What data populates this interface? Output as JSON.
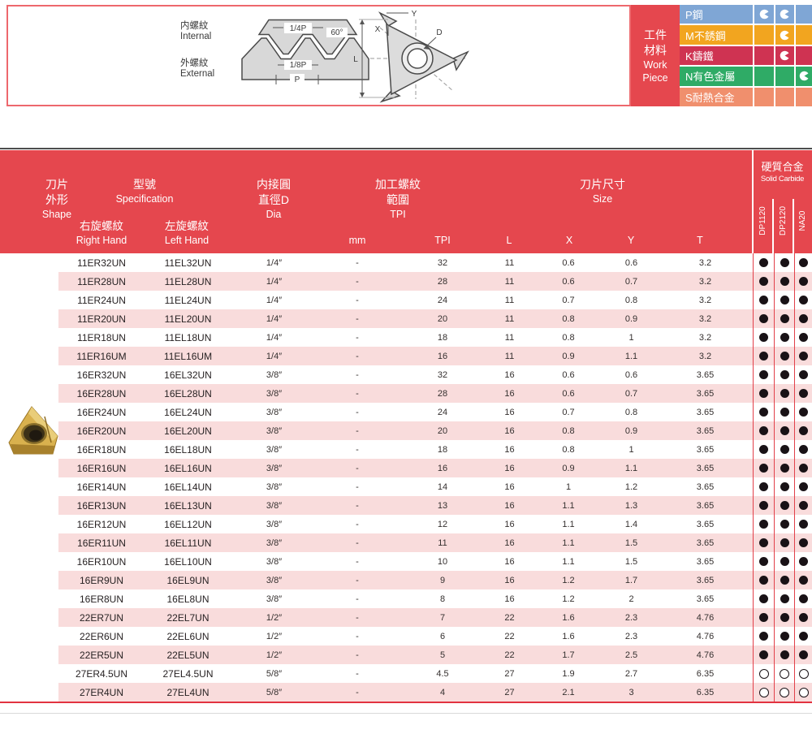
{
  "diagram": {
    "internal_zh": "内螺紋",
    "internal_en": "Internal",
    "external_zh": "外螺紋",
    "external_en": "External",
    "dims": {
      "quarter_p": "1/4P",
      "angle": "60°",
      "eighth_p": "1/8P",
      "p": "P",
      "l": "L",
      "x": "X",
      "y": "Y",
      "d": "D"
    }
  },
  "workpiece": {
    "label_zh1": "工件",
    "label_zh2": "材料",
    "label_en1": "Work",
    "label_en2": "Piece",
    "materials": [
      {
        "label": "P鋼",
        "color": "#7fa6d5",
        "marks": [
          1,
          1,
          0
        ]
      },
      {
        "label": "M不銹鋼",
        "color": "#f2a51f",
        "marks": [
          0,
          1,
          0
        ]
      },
      {
        "label": "K鑄鐵",
        "color": "#cf3352",
        "marks": [
          0,
          1,
          0
        ]
      },
      {
        "label": "N有色金屬",
        "color": "#2fab66",
        "marks": [
          0,
          0,
          1
        ]
      },
      {
        "label": "S耐熱合金",
        "color": "#f08f6d",
        "marks": [
          0,
          0,
          0
        ]
      }
    ]
  },
  "table": {
    "header": {
      "shape_zh1": "刀片",
      "shape_zh2": "外形",
      "shape_en": "Shape",
      "spec_zh": "型號",
      "spec_en": "Specification",
      "right_zh": "右旋螺紋",
      "right_en": "Right Hand",
      "left_zh": "左旋螺紋",
      "left_en": "Left Hand",
      "dia_zh1": "内接圓",
      "dia_zh2": "直徑D",
      "dia_en": "Dia",
      "dia_unit_sub": "mm",
      "thread_zh1": "加工螺紋",
      "thread_zh2": "範圍",
      "thread_en": "TPI",
      "thread_sub": "TPI",
      "size_zh": "刀片尺寸",
      "size_en": "Size",
      "size_subs": [
        "L",
        "X",
        "Y",
        "T"
      ],
      "carbide_zh": "硬質合金",
      "carbide_en": "Solid Carbide",
      "grades": [
        "DP1120",
        "DP2120",
        "NA20"
      ]
    },
    "rows": [
      [
        "11ER32UN",
        "11EL32UN",
        "1/4″",
        "-",
        "32",
        "11",
        "0.6",
        "0.6",
        "3.2",
        "filled"
      ],
      [
        "11ER28UN",
        "11EL28UN",
        "1/4″",
        "-",
        "28",
        "11",
        "0.6",
        "0.7",
        "3.2",
        "filled"
      ],
      [
        "11ER24UN",
        "11EL24UN",
        "1/4″",
        "-",
        "24",
        "11",
        "0.7",
        "0.8",
        "3.2",
        "filled"
      ],
      [
        "11ER20UN",
        "11EL20UN",
        "1/4″",
        "-",
        "20",
        "11",
        "0.8",
        "0.9",
        "3.2",
        "filled"
      ],
      [
        "11ER18UN",
        "11EL18UN",
        "1/4″",
        "-",
        "18",
        "11",
        "0.8",
        "1",
        "3.2",
        "filled"
      ],
      [
        "11ER16UM",
        "11EL16UM",
        "1/4″",
        "-",
        "16",
        "11",
        "0.9",
        "1.1",
        "3.2",
        "filled"
      ],
      [
        "16ER32UN",
        "16EL32UN",
        "3/8″",
        "-",
        "32",
        "16",
        "0.6",
        "0.6",
        "3.65",
        "filled"
      ],
      [
        "16ER28UN",
        "16EL28UN",
        "3/8″",
        "-",
        "28",
        "16",
        "0.6",
        "0.7",
        "3.65",
        "filled"
      ],
      [
        "16ER24UN",
        "16EL24UN",
        "3/8″",
        "-",
        "24",
        "16",
        "0.7",
        "0.8",
        "3.65",
        "filled"
      ],
      [
        "16ER20UN",
        "16EL20UN",
        "3/8″",
        "-",
        "20",
        "16",
        "0.8",
        "0.9",
        "3.65",
        "filled"
      ],
      [
        "16ER18UN",
        "16EL18UN",
        "3/8″",
        "-",
        "18",
        "16",
        "0.8",
        "1",
        "3.65",
        "filled"
      ],
      [
        "16ER16UN",
        "16EL16UN",
        "3/8″",
        "-",
        "16",
        "16",
        "0.9",
        "1.1",
        "3.65",
        "filled"
      ],
      [
        "16ER14UN",
        "16EL14UN",
        "3/8″",
        "-",
        "14",
        "16",
        "1",
        "1.2",
        "3.65",
        "filled"
      ],
      [
        "16ER13UN",
        "16EL13UN",
        "3/8″",
        "-",
        "13",
        "16",
        "1.1",
        "1.3",
        "3.65",
        "filled"
      ],
      [
        "16ER12UN",
        "16EL12UN",
        "3/8″",
        "-",
        "12",
        "16",
        "1.1",
        "1.4",
        "3.65",
        "filled"
      ],
      [
        "16ER11UN",
        "16EL11UN",
        "3/8″",
        "-",
        "11",
        "16",
        "1.1",
        "1.5",
        "3.65",
        "filled"
      ],
      [
        "16ER10UN",
        "16EL10UN",
        "3/8″",
        "-",
        "10",
        "16",
        "1.1",
        "1.5",
        "3.65",
        "filled"
      ],
      [
        "16ER9UN",
        "16EL9UN",
        "3/8″",
        "-",
        "9",
        "16",
        "1.2",
        "1.7",
        "3.65",
        "filled"
      ],
      [
        "16ER8UN",
        "16EL8UN",
        "3/8″",
        "-",
        "8",
        "16",
        "1.2",
        "2",
        "3.65",
        "filled"
      ],
      [
        "22ER7UN",
        "22EL7UN",
        "1/2″",
        "-",
        "7",
        "22",
        "1.6",
        "2.3",
        "4.76",
        "filled"
      ],
      [
        "22ER6UN",
        "22EL6UN",
        "1/2″",
        "-",
        "6",
        "22",
        "1.6",
        "2.3",
        "4.76",
        "filled"
      ],
      [
        "22ER5UN",
        "22EL5UN",
        "1/2″",
        "-",
        "5",
        "22",
        "1.7",
        "2.5",
        "4.76",
        "filled"
      ],
      [
        "27ER4.5UN",
        "27EL4.5UN",
        "5/8″",
        "-",
        "4.5",
        "27",
        "1.9",
        "2.7",
        "6.35",
        "open"
      ],
      [
        "27ER4UN",
        "27EL4UN",
        "5/8″",
        "-",
        "4",
        "27",
        "2.1",
        "3",
        "6.35",
        "open"
      ]
    ]
  }
}
